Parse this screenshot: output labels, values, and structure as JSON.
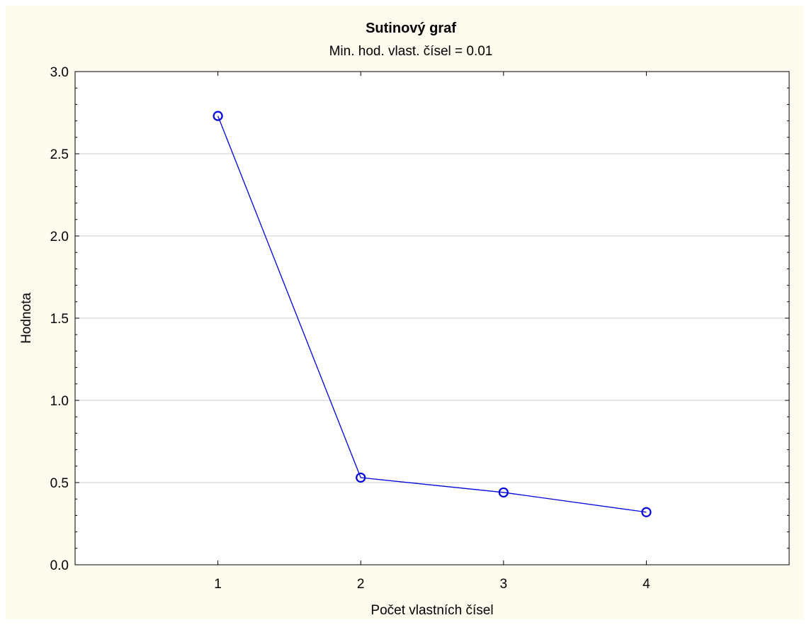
{
  "chart_data": {
    "type": "line",
    "title": "Sutinový graf",
    "subtitle": "Min. hod. vlast. čísel = 0.01",
    "xlabel": "Počet vlastních čísel",
    "ylabel": "Hodnota",
    "x": [
      1,
      2,
      3,
      4
    ],
    "x_ticks": [
      "1",
      "2",
      "3",
      "4"
    ],
    "xlim": [
      0,
      5
    ],
    "ylim": [
      0,
      3
    ],
    "y_ticks": [
      "0.0",
      "0.5",
      "1.0",
      "1.5",
      "2.0",
      "2.5",
      "3.0"
    ],
    "series": [
      {
        "values": [
          2.73,
          0.53,
          0.44,
          0.32
        ],
        "color": "#0000dd"
      }
    ],
    "grid": true,
    "legend": "none"
  },
  "colors": {
    "background": "#fdfaee",
    "plot_area": "#ffffff",
    "grid": "#cccccc",
    "series": "#0000dd"
  }
}
